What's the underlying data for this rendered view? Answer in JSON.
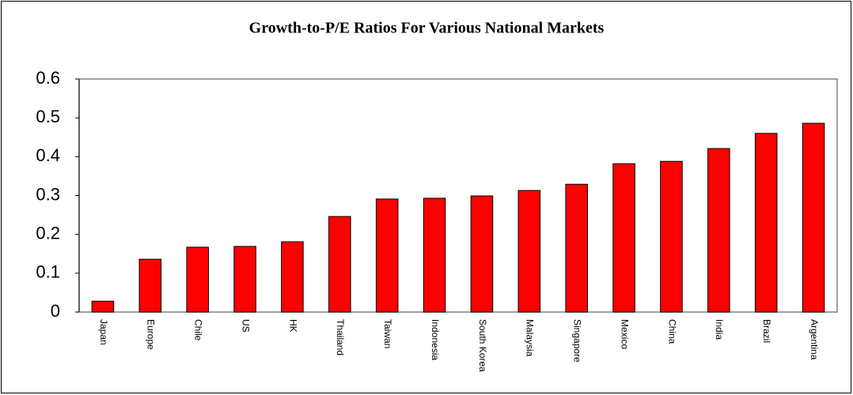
{
  "chart_data": {
    "type": "bar",
    "title": "Growth-to-P/E Ratios For Various National Markets",
    "categories": [
      "Japan",
      "Europe",
      "Chile",
      "US",
      "HK",
      "Thailand",
      "Taiwan",
      "Indonesia",
      "South Korea",
      "Malaysia",
      "Singapore",
      "Mexico",
      "China",
      "India",
      "Brazil",
      "Argentina"
    ],
    "values": [
      0.028,
      0.136,
      0.167,
      0.169,
      0.181,
      0.246,
      0.291,
      0.293,
      0.299,
      0.313,
      0.329,
      0.382,
      0.388,
      0.421,
      0.46,
      0.486
    ],
    "color": "#ff0000",
    "ylim": [
      0,
      0.6
    ],
    "yticks": [
      0,
      0.1,
      0.2,
      0.3,
      0.4,
      0.5,
      0.6
    ],
    "grid": false
  }
}
